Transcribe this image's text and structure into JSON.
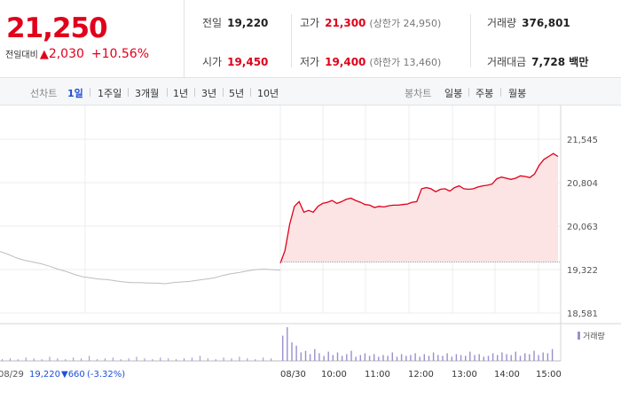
{
  "price": "21,250",
  "change": {
    "label": "전일대비",
    "arrow": "▲",
    "amount": "2,030",
    "percent": "+10.56%"
  },
  "stats": {
    "prev_close": {
      "label": "전일",
      "value": "19,220"
    },
    "open": {
      "label": "시가",
      "value": "19,450"
    },
    "high": {
      "label": "고가",
      "value": "21,300",
      "limit": "(상한가 24,950)"
    },
    "low": {
      "label": "저가",
      "value": "19,400",
      "limit": "(하한가 13,460)"
    },
    "volume": {
      "label": "거래량",
      "value": "376,801"
    },
    "trade_value": {
      "label": "거래대금",
      "value": "7,728 백만"
    }
  },
  "toolbar": {
    "line_label": "선차트",
    "periods": [
      "1일",
      "1주일",
      "3개월",
      "1년",
      "3년",
      "5년",
      "10년"
    ],
    "selected_period": "1일",
    "candle_label": "봉차트",
    "candles": [
      "일봉",
      "주봉",
      "월봉"
    ]
  },
  "colors": {
    "up": "#e0001b",
    "down": "#1d4fd8",
    "prev_line": "#bdbdbd",
    "fill": "#fde4e4",
    "volume": "#9b8fce"
  },
  "chart_data": {
    "type": "line",
    "ylim": [
      18581,
      21545
    ],
    "y_ticks": [
      "21,545",
      "20,804",
      "20,063",
      "19,322",
      "18,581"
    ],
    "x_ticks": [
      "08/30",
      "10:00",
      "11:00",
      "12:00",
      "13:00",
      "14:00",
      "15:00"
    ],
    "volume_label": "거래량",
    "prev_day": {
      "date": "08/29",
      "close": "19,220",
      "change": "▼660",
      "change_pct": "(-3.32%)",
      "values": [
        19630,
        19580,
        19520,
        19480,
        19450,
        19420,
        19380,
        19330,
        19290,
        19240,
        19200,
        19180,
        19160,
        19150,
        19130,
        19110,
        19100,
        19100,
        19090,
        19090,
        19080,
        19100,
        19110,
        19120,
        19140,
        19160,
        19180,
        19220,
        19250,
        19270,
        19300,
        19320,
        19330,
        19320,
        19310
      ]
    },
    "today": {
      "open": 19450,
      "values": [
        19430,
        19650,
        20100,
        20400,
        20480,
        20300,
        20330,
        20300,
        20400,
        20450,
        20470,
        20500,
        20450,
        20480,
        20520,
        20540,
        20500,
        20470,
        20430,
        20420,
        20380,
        20400,
        20390,
        20410,
        20420,
        20420,
        20430,
        20440,
        20470,
        20480,
        20700,
        20720,
        20700,
        20650,
        20690,
        20700,
        20660,
        20720,
        20750,
        20700,
        20690,
        20700,
        20730,
        20750,
        20760,
        20780,
        20870,
        20900,
        20880,
        20860,
        20880,
        20920,
        20910,
        20890,
        20950,
        21100,
        21200,
        21250,
        21300,
        21250
      ]
    },
    "prev_volume": [
      2,
      3,
      2,
      4,
      3,
      2,
      5,
      3,
      2,
      4,
      3,
      6,
      2,
      3,
      4,
      2,
      3,
      5,
      3,
      2,
      4,
      3,
      2,
      3,
      4,
      6,
      3,
      2,
      4,
      3,
      5,
      3,
      2,
      4,
      3
    ],
    "today_volume": [
      30,
      40,
      22,
      18,
      10,
      12,
      8,
      14,
      9,
      6,
      11,
      7,
      10,
      6,
      8,
      12,
      5,
      7,
      9,
      6,
      8,
      5,
      7,
      6,
      10,
      5,
      8,
      6,
      7,
      9,
      5,
      8,
      6,
      10,
      7,
      6,
      9,
      5,
      8,
      7,
      6,
      11,
      7,
      8,
      5,
      6,
      9,
      7,
      10,
      8,
      7,
      11,
      6,
      9,
      8,
      12,
      7,
      10,
      9,
      14
    ]
  }
}
